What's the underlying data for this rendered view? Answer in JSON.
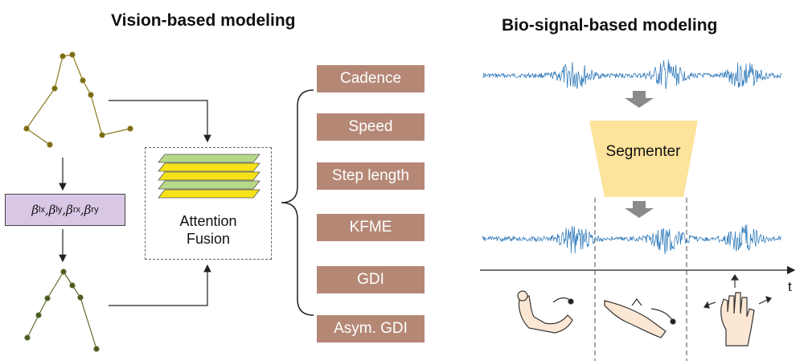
{
  "vision": {
    "title": "Vision-based modeling",
    "params_label": "βlx, βly, βrx, βry",
    "fusion_label_1": "Attention",
    "fusion_label_2": "Fusion"
  },
  "biosignal": {
    "title": "Bio-signal-based modeling",
    "segmenter_label": "Segmenter",
    "time_axis_label": "t"
  },
  "metrics": [
    "Cadence",
    "Speed",
    "Step length",
    "KFME",
    "GDI",
    "Asym. GDI"
  ],
  "colors": {
    "metric_box": "#b58876",
    "params_box": "#d8c8e6",
    "segmenter": "#fde39b",
    "signal": "#1f6fb5",
    "layer_green": "#b6d989",
    "layer_yellow": "#f7e217",
    "skeleton_upper": "#8b7a1e",
    "skeleton_lower": "#5a6e2e"
  },
  "icons": [
    "elbow-flexion-icon",
    "wrist-rotation-icon",
    "hand-spread-icon"
  ]
}
